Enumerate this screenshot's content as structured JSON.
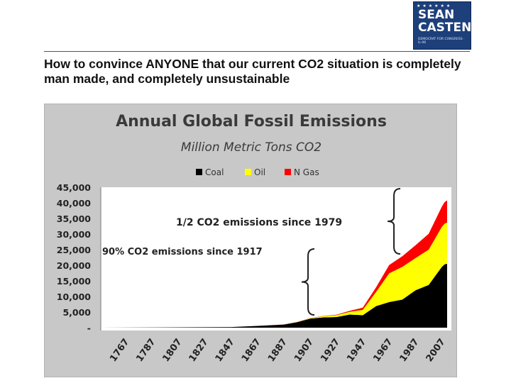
{
  "logo": {
    "line1": "SEAN",
    "line2": "CASTEN",
    "subtext": "DEMOCRAT FOR CONGRESS · IL-06"
  },
  "heading": "How to convince ANYONE that our current CO2 situation is completely man made, and completely unsustainable",
  "chart_data": {
    "type": "area",
    "title": "Annual Global Fossil Emissions",
    "subtitle": "Million Metric Tons CO2",
    "xlabel": "",
    "ylabel": "",
    "legend_position": "top-center",
    "ylim": [
      0,
      45000
    ],
    "xlim": [
      1751,
      2014
    ],
    "grid": false,
    "y_tick_labels": [
      "-",
      "5,000",
      "10,000",
      "15,000",
      "20,000",
      "25,000",
      "30,000",
      "35,000",
      "40,000",
      "45,000"
    ],
    "x_tick_labels": [
      "1767",
      "1787",
      "1807",
      "1827",
      "1847",
      "1867",
      "1887",
      "1907",
      "1927",
      "1947",
      "1967",
      "1987",
      "2007"
    ],
    "x": [
      1751,
      1800,
      1850,
      1870,
      1890,
      1900,
      1910,
      1920,
      1930,
      1940,
      1950,
      1960,
      1970,
      1980,
      1990,
      2000,
      2010,
      2012,
      2014
    ],
    "series": [
      {
        "name": "Coal",
        "color": "#000000",
        "values": [
          10,
          100,
          200,
          560,
          1000,
          1750,
          2900,
          3300,
          3400,
          4200,
          4000,
          6900,
          8200,
          9000,
          12000,
          13700,
          19500,
          20300,
          20500
        ]
      },
      {
        "name": "Oil",
        "color": "#ffff00",
        "values": [
          0,
          0,
          0,
          0,
          10,
          60,
          150,
          350,
          600,
          900,
          1700,
          4500,
          9200,
          10500,
          10300,
          11300,
          12800,
          13000,
          13200
        ]
      },
      {
        "name": "N Gas",
        "color": "#ff0000",
        "values": [
          0,
          0,
          0,
          0,
          5,
          20,
          50,
          100,
          150,
          300,
          700,
          1500,
          2700,
          3400,
          4100,
          5100,
          6500,
          6900,
          7100
        ]
      }
    ],
    "annotations": [
      {
        "text": "1/2 CO2 emissions  since 1979",
        "from_year": 1979
      },
      {
        "text": "90% CO2 emissions since 1917",
        "from_year": 1917
      }
    ]
  }
}
